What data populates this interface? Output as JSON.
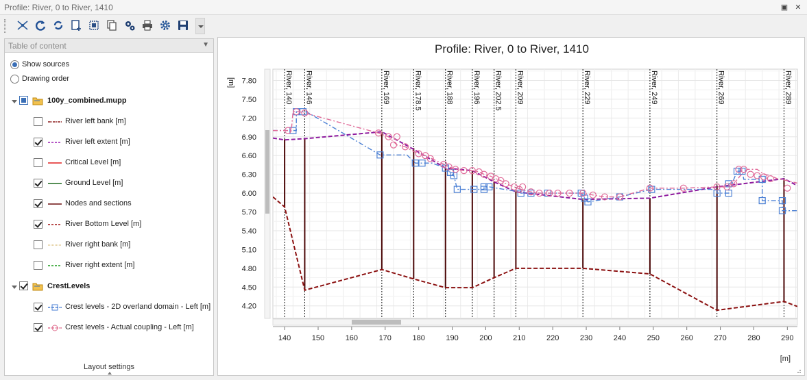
{
  "window": {
    "title": "Profile: River, 0 to River, 1410"
  },
  "toolbar": {
    "icons": [
      "network-icon",
      "refresh-icon",
      "reload-icon",
      "add-page-icon",
      "select-icon",
      "copy-icon",
      "settings-gears-icon",
      "print-icon",
      "settings-icon",
      "save-icon"
    ]
  },
  "toc": {
    "title": "Table of content",
    "show_sources": "Show sources",
    "drawing_order": "Drawing order",
    "groups": [
      {
        "name": "100y_combined.mupp",
        "items": [
          {
            "label": "River left bank [m]",
            "checked": false,
            "color": "#8b1a1a",
            "style": "dashdot"
          },
          {
            "label": "River left extent [m]",
            "checked": true,
            "color": "#9b1fb4",
            "style": "dashed"
          },
          {
            "label": "Critical Level [m]",
            "checked": false,
            "color": "#e02020",
            "style": "solid"
          },
          {
            "label": "Ground Level [m]",
            "checked": true,
            "color": "#1f6a1f",
            "style": "solid"
          },
          {
            "label": "Nodes and sections",
            "checked": true,
            "color": "#6b0f0f",
            "style": "solid"
          },
          {
            "label": "River Bottom Level [m]",
            "checked": true,
            "color": "#a01010",
            "style": "dashed"
          },
          {
            "label": "River right bank [m]",
            "checked": false,
            "color": "#c8a040",
            "style": "dotted"
          },
          {
            "label": "River right extent [m]",
            "checked": false,
            "color": "#1a9a1a",
            "style": "dashed"
          }
        ]
      },
      {
        "name": "CrestLevels",
        "items": [
          {
            "label": "Crest levels - 2D overland domain - Left [m]",
            "checked": true,
            "color": "#4a7fd4",
            "style": "square"
          },
          {
            "label": "Crest levels - Actual coupling - Left [m]",
            "checked": true,
            "color": "#e07090",
            "style": "circle"
          }
        ]
      }
    ],
    "footer": "Layout settings"
  },
  "chart_data": {
    "type": "line",
    "title": "Profile: River, 0 to River, 1410",
    "ylabel": "[m]",
    "xlabel": "[m]",
    "xlim": [
      136.5,
      293
    ],
    "ylim": [
      4.0,
      7.98
    ],
    "xticks": [
      140,
      150,
      160,
      170,
      180,
      190,
      200,
      210,
      220,
      230,
      240,
      250,
      260,
      270,
      280,
      290
    ],
    "yticks": [
      4.2,
      4.5,
      4.8,
      5.1,
      5.4,
      5.7,
      6.0,
      6.3,
      6.6,
      6.9,
      7.2,
      7.5,
      7.8
    ],
    "grid": true,
    "nodes": [
      {
        "label": "River, 140",
        "x": 140,
        "bed": 5.78,
        "top": 6.86
      },
      {
        "label": "River, 146",
        "x": 146,
        "bed": 4.45,
        "top": 6.86
      },
      {
        "label": "River, 169",
        "x": 169,
        "bed": 4.78,
        "top": 6.98
      },
      {
        "label": "River, 178.5",
        "x": 178.5,
        "bed": 4.63,
        "top": 6.72
      },
      {
        "label": "River, 188",
        "x": 188,
        "bed": 4.49,
        "top": 6.4
      },
      {
        "label": "River, 196",
        "x": 196,
        "bed": 4.49,
        "top": 6.36
      },
      {
        "label": "River, 202.5",
        "x": 202.5,
        "bed": 4.65,
        "top": 6.18
      },
      {
        "label": "River, 209",
        "x": 209,
        "bed": 4.8,
        "top": 6.03
      },
      {
        "label": "River, 229",
        "x": 229,
        "bed": 4.8,
        "top": 5.9
      },
      {
        "label": "River, 249",
        "x": 249,
        "bed": 4.71,
        "top": 5.92
      },
      {
        "label": "River, 269",
        "x": 269,
        "bed": 4.13,
        "top": 6.12
      },
      {
        "label": "River, 289",
        "x": 289,
        "bed": 4.27,
        "top": 6.24
      }
    ],
    "series": [
      {
        "name": "River Bottom Level [m]",
        "color": "#8b1010",
        "style": "dashed",
        "x": [
          136.5,
          140,
          146,
          169,
          178.5,
          188,
          196,
          202.5,
          209,
          229,
          249,
          269,
          289,
          293
        ],
        "y": [
          5.94,
          5.78,
          4.45,
          4.78,
          4.63,
          4.49,
          4.49,
          4.65,
          4.8,
          4.8,
          4.71,
          4.13,
          4.27,
          4.19
        ]
      },
      {
        "name": "River left extent [m]",
        "color": "#8e1a9e",
        "style": "dashed",
        "x": [
          136.5,
          140,
          146,
          169,
          178.5,
          188,
          196,
          202.5,
          209,
          229,
          249,
          269,
          289,
          293
        ],
        "y": [
          6.88,
          6.85,
          6.87,
          6.98,
          6.7,
          6.4,
          6.36,
          6.18,
          6.02,
          5.9,
          5.92,
          6.1,
          6.23,
          6.12
        ]
      },
      {
        "name": "Crest levels - 2D overland domain - Left [m]",
        "color": "#4a7fd4",
        "style": "dashdot-square",
        "x": [
          136.5,
          142.5,
          142.5,
          143.5,
          143.5,
          144.5,
          144.5,
          146.5,
          168.5,
          176.5,
          179,
          181,
          184,
          188,
          189.5,
          190.5,
          191.5,
          196,
          196.5,
          198,
          199.5,
          199.5,
          201,
          209,
          210.5,
          210.5,
          213.5,
          213.5,
          218.5,
          228.5,
          228.5,
          229.5,
          229.5,
          230.5,
          230.5,
          240,
          249.5,
          249.5,
          269,
          269,
          272.5,
          272.5,
          273.5,
          275,
          276,
          276.5,
          277,
          282.5,
          282.5,
          288.5,
          288.5,
          289,
          291,
          293
        ],
        "y": [
          7.0,
          7.0,
          7.0,
          7.0,
          7.3,
          7.3,
          7.3,
          7.3,
          6.61,
          6.61,
          6.48,
          6.48,
          6.48,
          6.4,
          6.33,
          6.28,
          6.06,
          6.06,
          6.06,
          6.06,
          6.06,
          6.1,
          6.1,
          6.03,
          6.03,
          6.0,
          6.0,
          6.0,
          6.0,
          6.0,
          6.0,
          5.92,
          5.92,
          5.86,
          5.86,
          5.94,
          6.06,
          6.06,
          6.06,
          6.0,
          6.0,
          6.15,
          6.15,
          6.35,
          6.35,
          6.35,
          6.22,
          6.22,
          5.88,
          5.88,
          5.72,
          5.72,
          5.72,
          5.72
        ],
        "markers": [
          [
            142.5,
            7.0
          ],
          [
            143.5,
            7.3
          ],
          [
            145.5,
            7.3
          ],
          [
            168.5,
            6.61
          ],
          [
            179,
            6.48
          ],
          [
            181,
            6.48
          ],
          [
            188,
            6.4
          ],
          [
            189.5,
            6.33
          ],
          [
            190.5,
            6.28
          ],
          [
            191.5,
            6.06
          ],
          [
            196.5,
            6.06
          ],
          [
            199.5,
            6.06
          ],
          [
            199.5,
            6.1
          ],
          [
            201,
            6.1
          ],
          [
            210.5,
            6.0
          ],
          [
            213.5,
            6.0
          ],
          [
            218.5,
            6.0
          ],
          [
            228.5,
            6.0
          ],
          [
            229.5,
            5.92
          ],
          [
            230.5,
            5.86
          ],
          [
            240,
            5.94
          ],
          [
            249.5,
            6.06
          ],
          [
            269,
            6.0
          ],
          [
            272.5,
            6.0
          ],
          [
            272.5,
            6.15
          ],
          [
            275,
            6.35
          ],
          [
            276.5,
            6.35
          ],
          [
            282.5,
            6.22
          ],
          [
            282.5,
            5.88
          ],
          [
            288.5,
            5.88
          ],
          [
            288.5,
            5.72
          ]
        ]
      },
      {
        "name": "Crest levels - Actual coupling - Left [m]",
        "color": "#e06a98",
        "style": "dashdot-circle",
        "x": [
          136.5,
          141,
          142,
          142.5,
          143.5,
          144.5,
          146,
          168,
          171,
          173.5,
          176,
          178,
          180,
          182,
          184,
          187.5,
          189,
          191,
          193.5,
          196,
          198,
          199.5,
          201.5,
          203,
          204.5,
          206,
          208.5,
          210,
          211,
          212,
          213.5,
          216,
          219,
          221.5,
          225,
          229,
          232,
          235.5,
          240,
          249,
          259,
          269,
          272,
          274,
          276,
          278,
          281,
          283,
          285,
          287,
          290,
          293
        ],
        "y": [
          7.0,
          7.0,
          7.0,
          7.3,
          7.3,
          7.3,
          7.28,
          6.96,
          6.9,
          6.77,
          6.74,
          6.68,
          6.63,
          6.6,
          6.55,
          6.46,
          6.42,
          6.38,
          6.36,
          6.36,
          6.34,
          6.3,
          6.27,
          6.23,
          6.2,
          6.15,
          6.1,
          6.07,
          6.05,
          6.04,
          6.02,
          6.0,
          6.0,
          6.0,
          6.0,
          6.0,
          5.97,
          5.94,
          5.94,
          6.08,
          6.08,
          6.1,
          6.1,
          6.15,
          6.28,
          6.38,
          6.38,
          6.3,
          6.28,
          6.23,
          6.2,
          6.16
        ],
        "markers": [
          [
            141,
            7.0
          ],
          [
            143.5,
            7.3
          ],
          [
            146,
            7.28
          ],
          [
            168,
            6.96
          ],
          [
            171,
            6.9
          ],
          [
            172.5,
            6.77
          ],
          [
            173.5,
            6.9
          ],
          [
            176,
            6.74
          ],
          [
            180,
            6.63
          ],
          [
            182,
            6.6
          ],
          [
            183.5,
            6.55
          ],
          [
            187.5,
            6.46
          ],
          [
            189,
            6.42
          ],
          [
            191,
            6.38
          ],
          [
            193.5,
            6.36
          ],
          [
            196,
            6.36
          ],
          [
            198,
            6.34
          ],
          [
            199.5,
            6.3
          ],
          [
            201.5,
            6.27
          ],
          [
            203,
            6.23
          ],
          [
            204.5,
            6.2
          ],
          [
            206,
            6.15
          ],
          [
            208.5,
            6.1
          ],
          [
            210,
            6.06
          ],
          [
            211,
            6.1
          ],
          [
            213.5,
            6.02
          ],
          [
            216,
            6.0
          ],
          [
            219,
            6.0
          ],
          [
            221.5,
            6.0
          ],
          [
            225,
            6.0
          ],
          [
            229,
            6.0
          ],
          [
            232,
            5.97
          ],
          [
            235.5,
            5.94
          ],
          [
            240,
            5.94
          ],
          [
            249,
            6.08
          ],
          [
            259,
            6.08
          ],
          [
            269,
            6.1
          ],
          [
            272,
            6.1
          ],
          [
            274,
            6.15
          ],
          [
            275.5,
            6.38
          ],
          [
            277,
            6.38
          ],
          [
            279,
            6.3
          ],
          [
            281,
            6.28
          ],
          [
            283,
            6.26
          ],
          [
            285,
            6.23
          ],
          [
            290,
            6.08
          ]
        ]
      }
    ]
  }
}
